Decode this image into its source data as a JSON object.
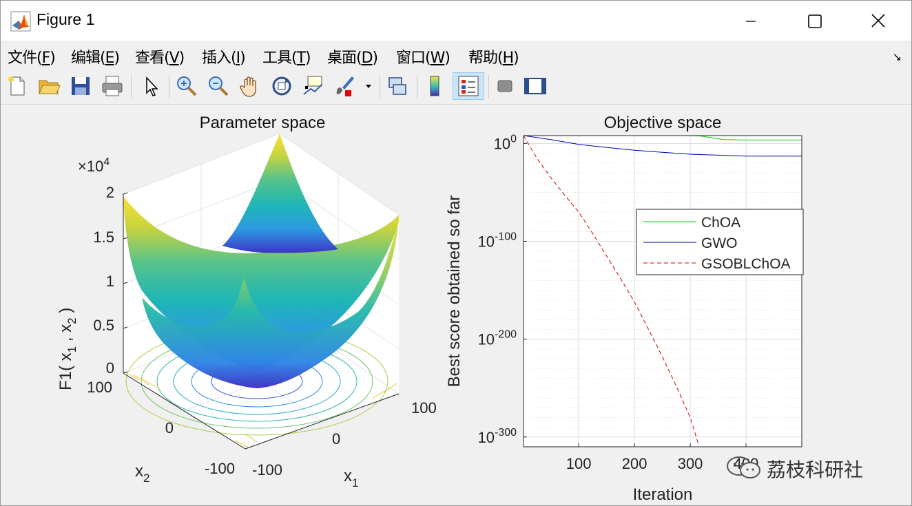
{
  "window": {
    "title": "Figure 1",
    "controls": {
      "minimize": "minimize-icon",
      "maximize": "maximize-icon",
      "close": "close-icon"
    }
  },
  "menu": [
    {
      "label": "文件(",
      "key": "F",
      "end": ")"
    },
    {
      "label": "编辑(",
      "key": "E",
      "end": ")"
    },
    {
      "label": "查看(",
      "key": "V",
      "end": ")"
    },
    {
      "label": "插入(",
      "key": "I",
      "end": ")"
    },
    {
      "label": "工具(",
      "key": "T",
      "end": ")"
    },
    {
      "label": "桌面(",
      "key": "D",
      "end": ")"
    },
    {
      "label": "窗口(",
      "key": "W",
      "end": ")"
    },
    {
      "label": "帮助(",
      "key": "H",
      "end": ")"
    }
  ],
  "toolbar": [
    "new-figure-icon",
    "open-icon",
    "save-icon",
    "print-icon",
    "pointer-icon",
    "zoom-in-icon",
    "zoom-out-icon",
    "pan-icon",
    "rotate-3d-icon",
    "data-cursor-icon",
    "brush-icon",
    "brush-dropdown-icon",
    "link-plot-icon",
    "colorbar-icon",
    "legend-icon",
    "hide-plot-tools-icon",
    "show-plot-tools-icon"
  ],
  "left_plot": {
    "title": "Parameter space",
    "zlabel": "F1( x",
    "zlabel_sub1": "1",
    "zlabel_mid": " , x",
    "zlabel_sub2": "2",
    "zlabel_end": " )",
    "zexp_base": "×10",
    "zexp": "4",
    "zticks": [
      "2",
      "1.5",
      "1",
      "0.5",
      "0"
    ],
    "x1label": "x",
    "x1sub": "1",
    "x2label": "x",
    "x2sub": "2",
    "x1ticks": [
      "-100",
      "0",
      "100"
    ],
    "x2ticks": [
      "100",
      "0",
      "-100"
    ]
  },
  "chart_data": {
    "type": "line",
    "title": "Objective space",
    "xlabel": "Iteration",
    "ylabel": "Best score obtained so far",
    "x_ticks": [
      "100",
      "200",
      "300",
      "400"
    ],
    "y_tick_base": "10",
    "y_ticks": [
      "0",
      "-100",
      "-200",
      "-300"
    ],
    "y_scale": "log",
    "xlim": [
      1,
      500
    ],
    "ylim_exponent": [
      -310,
      8
    ],
    "grid": true,
    "legend_position": "top-right",
    "series": [
      {
        "name": "ChOA",
        "color": "#00cc00",
        "style": "solid",
        "x": [
          1,
          50,
          100,
          200,
          300,
          320,
          360,
          400,
          500
        ],
        "log10_y": [
          8,
          8,
          8,
          8,
          8,
          7.5,
          4,
          3.5,
          3.5
        ]
      },
      {
        "name": "GWO",
        "color": "#0000aa",
        "style": "solid",
        "x": [
          1,
          50,
          100,
          150,
          200,
          250,
          300,
          350,
          400,
          450,
          500
        ],
        "log10_y": [
          8,
          4,
          -1,
          -4,
          -7,
          -9,
          -11,
          -12,
          -13,
          -13,
          -13
        ]
      },
      {
        "name": "GSOBLChOA",
        "color": "#cc0000",
        "style": "dashed",
        "x": [
          1,
          25,
          50,
          75,
          100,
          125,
          150,
          175,
          200,
          225,
          250,
          275,
          300,
          315
        ],
        "log10_y": [
          8,
          -15,
          -35,
          -53,
          -70,
          -92,
          -115,
          -138,
          -162,
          -190,
          -218,
          -248,
          -280,
          -308
        ]
      }
    ]
  },
  "watermark": "荔枝科研社"
}
